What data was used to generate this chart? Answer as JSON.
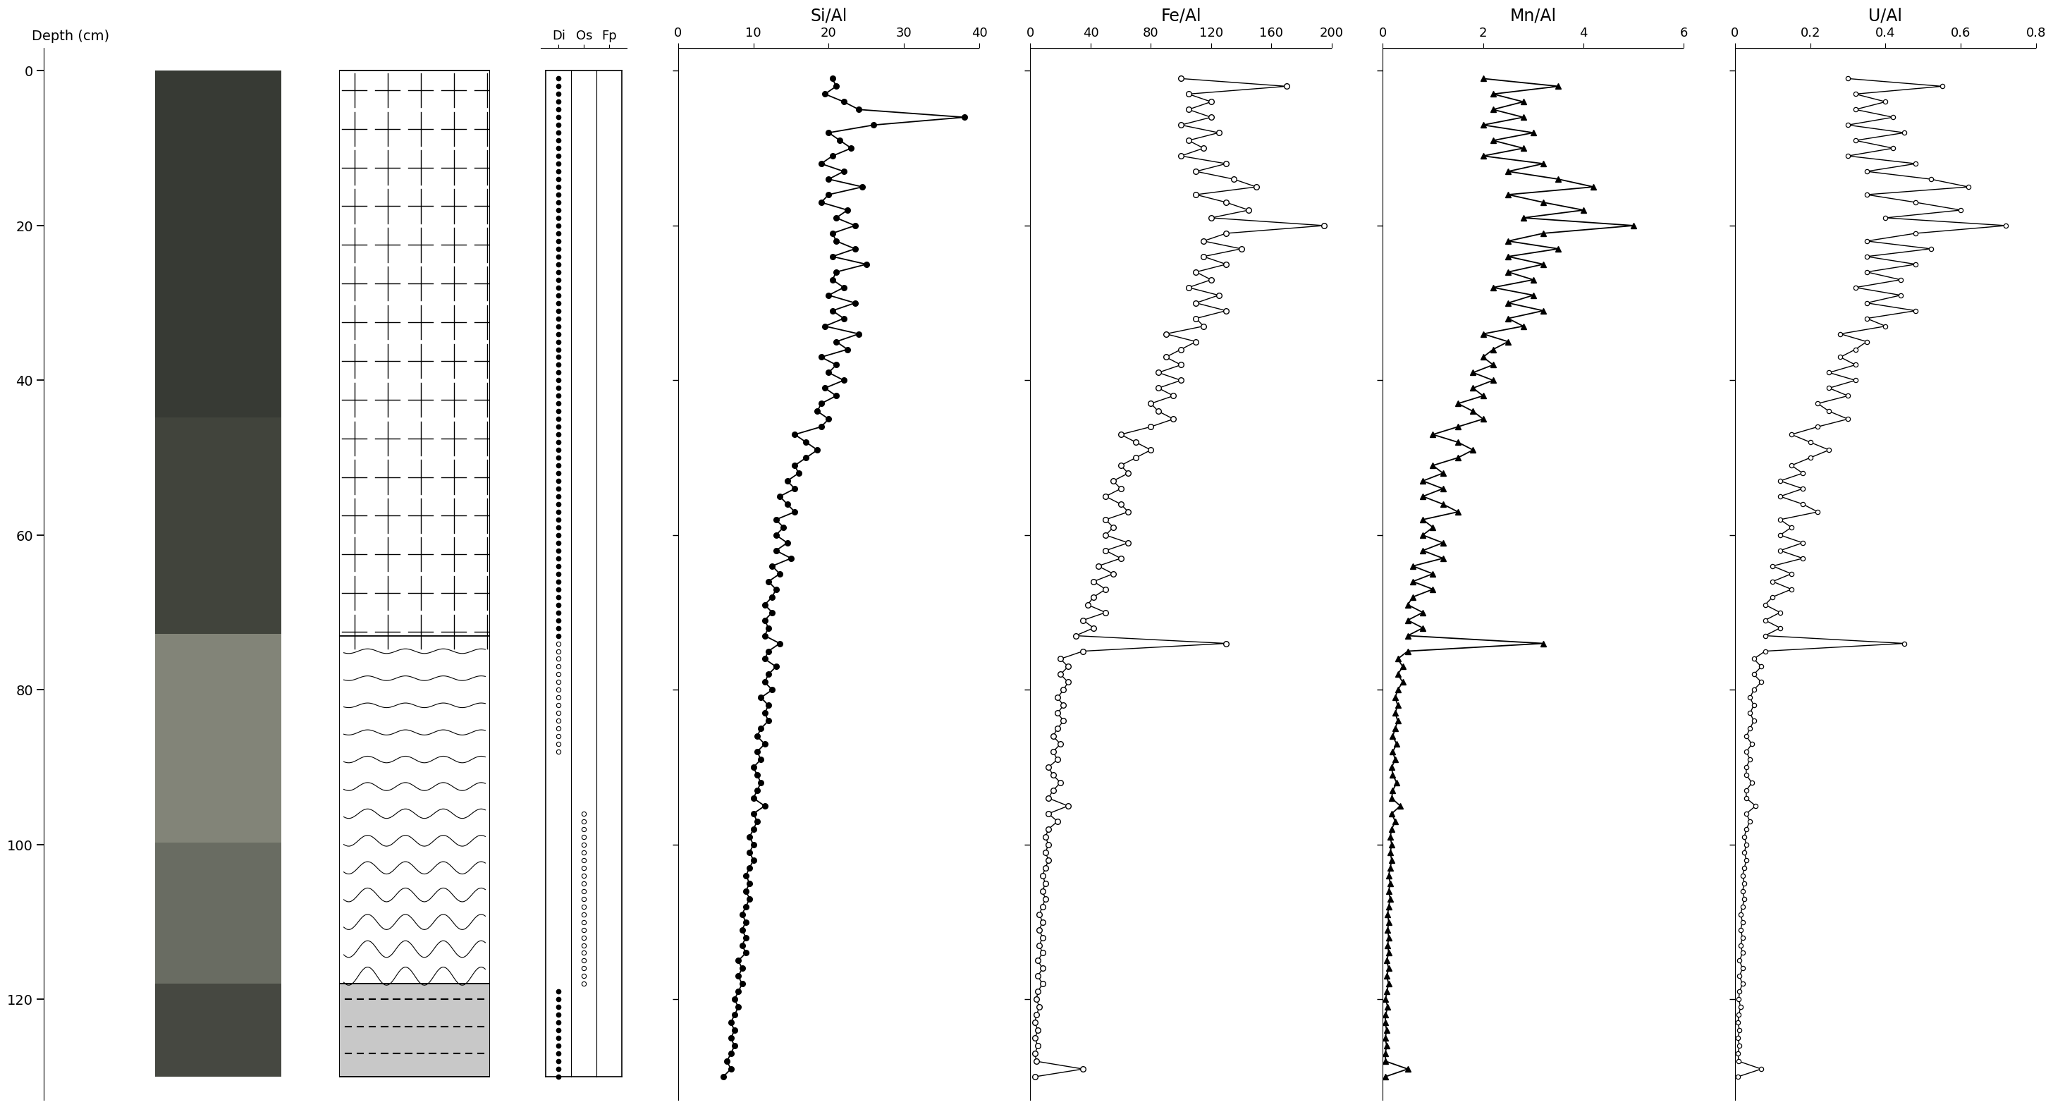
{
  "depth_min": 0,
  "depth_max": 130,
  "depth_ticks": [
    0,
    20,
    40,
    60,
    80,
    100,
    120
  ],
  "si_al_data": [
    [
      1,
      20.5
    ],
    [
      2,
      21.0
    ],
    [
      3,
      19.5
    ],
    [
      4,
      22.0
    ],
    [
      5,
      24.0
    ],
    [
      6,
      38.0
    ],
    [
      7,
      26.0
    ],
    [
      8,
      20.0
    ],
    [
      9,
      21.5
    ],
    [
      10,
      23.0
    ],
    [
      11,
      20.5
    ],
    [
      12,
      19.0
    ],
    [
      13,
      22.0
    ],
    [
      14,
      20.0
    ],
    [
      15,
      24.5
    ],
    [
      16,
      20.0
    ],
    [
      17,
      19.0
    ],
    [
      18,
      22.5
    ],
    [
      19,
      21.0
    ],
    [
      20,
      23.5
    ],
    [
      21,
      20.5
    ],
    [
      22,
      21.0
    ],
    [
      23,
      23.5
    ],
    [
      24,
      20.5
    ],
    [
      25,
      25.0
    ],
    [
      26,
      21.0
    ],
    [
      27,
      20.5
    ],
    [
      28,
      22.0
    ],
    [
      29,
      20.0
    ],
    [
      30,
      23.5
    ],
    [
      31,
      20.5
    ],
    [
      32,
      22.0
    ],
    [
      33,
      19.5
    ],
    [
      34,
      24.0
    ],
    [
      35,
      21.0
    ],
    [
      36,
      22.5
    ],
    [
      37,
      19.0
    ],
    [
      38,
      21.0
    ],
    [
      39,
      20.0
    ],
    [
      40,
      22.0
    ],
    [
      41,
      19.5
    ],
    [
      42,
      21.0
    ],
    [
      43,
      19.0
    ],
    [
      44,
      18.5
    ],
    [
      45,
      20.0
    ],
    [
      46,
      19.0
    ],
    [
      47,
      15.5
    ],
    [
      48,
      17.0
    ],
    [
      49,
      18.5
    ],
    [
      50,
      17.0
    ],
    [
      51,
      15.5
    ],
    [
      52,
      16.0
    ],
    [
      53,
      14.5
    ],
    [
      54,
      15.5
    ],
    [
      55,
      13.5
    ],
    [
      56,
      14.5
    ],
    [
      57,
      15.5
    ],
    [
      58,
      13.0
    ],
    [
      59,
      14.0
    ],
    [
      60,
      13.0
    ],
    [
      61,
      14.5
    ],
    [
      62,
      13.0
    ],
    [
      63,
      15.0
    ],
    [
      64,
      12.5
    ],
    [
      65,
      13.5
    ],
    [
      66,
      12.0
    ],
    [
      67,
      13.0
    ],
    [
      68,
      12.5
    ],
    [
      69,
      11.5
    ],
    [
      70,
      12.5
    ],
    [
      71,
      11.5
    ],
    [
      72,
      12.0
    ],
    [
      73,
      11.5
    ],
    [
      74,
      13.5
    ],
    [
      75,
      12.0
    ],
    [
      76,
      11.5
    ],
    [
      77,
      13.0
    ],
    [
      78,
      12.0
    ],
    [
      79,
      11.5
    ],
    [
      80,
      12.5
    ],
    [
      81,
      11.0
    ],
    [
      82,
      12.0
    ],
    [
      83,
      11.5
    ],
    [
      84,
      12.0
    ],
    [
      85,
      11.0
    ],
    [
      86,
      10.5
    ],
    [
      87,
      11.5
    ],
    [
      88,
      10.5
    ],
    [
      89,
      11.0
    ],
    [
      90,
      10.0
    ],
    [
      91,
      10.5
    ],
    [
      92,
      11.0
    ],
    [
      93,
      10.5
    ],
    [
      94,
      10.0
    ],
    [
      95,
      11.5
    ],
    [
      96,
      10.0
    ],
    [
      97,
      10.5
    ],
    [
      98,
      10.0
    ],
    [
      99,
      9.5
    ],
    [
      100,
      10.0
    ],
    [
      101,
      9.5
    ],
    [
      102,
      10.0
    ],
    [
      103,
      9.5
    ],
    [
      104,
      9.0
    ],
    [
      105,
      9.5
    ],
    [
      106,
      9.0
    ],
    [
      107,
      9.5
    ],
    [
      108,
      9.0
    ],
    [
      109,
      8.5
    ],
    [
      110,
      9.0
    ],
    [
      111,
      8.5
    ],
    [
      112,
      9.0
    ],
    [
      113,
      8.5
    ],
    [
      114,
      9.0
    ],
    [
      115,
      8.0
    ],
    [
      116,
      8.5
    ],
    [
      117,
      8.0
    ],
    [
      118,
      8.5
    ],
    [
      119,
      8.0
    ],
    [
      120,
      7.5
    ],
    [
      121,
      8.0
    ],
    [
      122,
      7.5
    ],
    [
      123,
      7.0
    ],
    [
      124,
      7.5
    ],
    [
      125,
      7.0
    ],
    [
      126,
      7.5
    ],
    [
      127,
      7.0
    ],
    [
      128,
      6.5
    ],
    [
      129,
      7.0
    ],
    [
      130,
      6.0
    ]
  ],
  "fe_al_data": [
    [
      1,
      100
    ],
    [
      2,
      170
    ],
    [
      3,
      105
    ],
    [
      4,
      120
    ],
    [
      5,
      105
    ],
    [
      6,
      120
    ],
    [
      7,
      100
    ],
    [
      8,
      125
    ],
    [
      9,
      105
    ],
    [
      10,
      115
    ],
    [
      11,
      100
    ],
    [
      12,
      130
    ],
    [
      13,
      110
    ],
    [
      14,
      135
    ],
    [
      15,
      150
    ],
    [
      16,
      110
    ],
    [
      17,
      130
    ],
    [
      18,
      145
    ],
    [
      19,
      120
    ],
    [
      20,
      195
    ],
    [
      21,
      130
    ],
    [
      22,
      115
    ],
    [
      23,
      140
    ],
    [
      24,
      115
    ],
    [
      25,
      130
    ],
    [
      26,
      110
    ],
    [
      27,
      120
    ],
    [
      28,
      105
    ],
    [
      29,
      125
    ],
    [
      30,
      110
    ],
    [
      31,
      130
    ],
    [
      32,
      110
    ],
    [
      33,
      115
    ],
    [
      34,
      90
    ],
    [
      35,
      110
    ],
    [
      36,
      100
    ],
    [
      37,
      90
    ],
    [
      38,
      100
    ],
    [
      39,
      85
    ],
    [
      40,
      100
    ],
    [
      41,
      85
    ],
    [
      42,
      95
    ],
    [
      43,
      80
    ],
    [
      44,
      85
    ],
    [
      45,
      95
    ],
    [
      46,
      80
    ],
    [
      47,
      60
    ],
    [
      48,
      70
    ],
    [
      49,
      80
    ],
    [
      50,
      70
    ],
    [
      51,
      60
    ],
    [
      52,
      65
    ],
    [
      53,
      55
    ],
    [
      54,
      60
    ],
    [
      55,
      50
    ],
    [
      56,
      60
    ],
    [
      57,
      65
    ],
    [
      58,
      50
    ],
    [
      59,
      55
    ],
    [
      60,
      50
    ],
    [
      61,
      65
    ],
    [
      62,
      50
    ],
    [
      63,
      60
    ],
    [
      64,
      45
    ],
    [
      65,
      55
    ],
    [
      66,
      42
    ],
    [
      67,
      50
    ],
    [
      68,
      42
    ],
    [
      69,
      38
    ],
    [
      70,
      50
    ],
    [
      71,
      35
    ],
    [
      72,
      42
    ],
    [
      73,
      30
    ],
    [
      74,
      130
    ],
    [
      75,
      35
    ],
    [
      76,
      20
    ],
    [
      77,
      25
    ],
    [
      78,
      20
    ],
    [
      79,
      25
    ],
    [
      80,
      22
    ],
    [
      81,
      18
    ],
    [
      82,
      22
    ],
    [
      83,
      18
    ],
    [
      84,
      22
    ],
    [
      85,
      18
    ],
    [
      86,
      15
    ],
    [
      87,
      20
    ],
    [
      88,
      15
    ],
    [
      89,
      18
    ],
    [
      90,
      12
    ],
    [
      91,
      15
    ],
    [
      92,
      20
    ],
    [
      93,
      15
    ],
    [
      94,
      12
    ],
    [
      95,
      25
    ],
    [
      96,
      12
    ],
    [
      97,
      18
    ],
    [
      98,
      12
    ],
    [
      99,
      10
    ],
    [
      100,
      12
    ],
    [
      101,
      10
    ],
    [
      102,
      12
    ],
    [
      103,
      10
    ],
    [
      104,
      8
    ],
    [
      105,
      10
    ],
    [
      106,
      8
    ],
    [
      107,
      10
    ],
    [
      108,
      8
    ],
    [
      109,
      6
    ],
    [
      110,
      8
    ],
    [
      111,
      6
    ],
    [
      112,
      8
    ],
    [
      113,
      6
    ],
    [
      114,
      8
    ],
    [
      115,
      5
    ],
    [
      116,
      8
    ],
    [
      117,
      5
    ],
    [
      118,
      8
    ],
    [
      119,
      5
    ],
    [
      120,
      4
    ],
    [
      121,
      6
    ],
    [
      122,
      4
    ],
    [
      123,
      3
    ],
    [
      124,
      5
    ],
    [
      125,
      3
    ],
    [
      126,
      5
    ],
    [
      127,
      3
    ],
    [
      128,
      4
    ],
    [
      129,
      35
    ],
    [
      130,
      3
    ]
  ],
  "mn_al_data": [
    [
      1,
      2.0
    ],
    [
      2,
      3.5
    ],
    [
      3,
      2.2
    ],
    [
      4,
      2.8
    ],
    [
      5,
      2.2
    ],
    [
      6,
      2.8
    ],
    [
      7,
      2.0
    ],
    [
      8,
      3.0
    ],
    [
      9,
      2.2
    ],
    [
      10,
      2.8
    ],
    [
      11,
      2.0
    ],
    [
      12,
      3.2
    ],
    [
      13,
      2.5
    ],
    [
      14,
      3.5
    ],
    [
      15,
      4.2
    ],
    [
      16,
      2.5
    ],
    [
      17,
      3.2
    ],
    [
      18,
      4.0
    ],
    [
      19,
      2.8
    ],
    [
      20,
      5.0
    ],
    [
      21,
      3.2
    ],
    [
      22,
      2.5
    ],
    [
      23,
      3.5
    ],
    [
      24,
      2.5
    ],
    [
      25,
      3.2
    ],
    [
      26,
      2.5
    ],
    [
      27,
      3.0
    ],
    [
      28,
      2.2
    ],
    [
      29,
      3.0
    ],
    [
      30,
      2.5
    ],
    [
      31,
      3.2
    ],
    [
      32,
      2.5
    ],
    [
      33,
      2.8
    ],
    [
      34,
      2.0
    ],
    [
      35,
      2.5
    ],
    [
      36,
      2.2
    ],
    [
      37,
      2.0
    ],
    [
      38,
      2.2
    ],
    [
      39,
      1.8
    ],
    [
      40,
      2.2
    ],
    [
      41,
      1.8
    ],
    [
      42,
      2.0
    ],
    [
      43,
      1.5
    ],
    [
      44,
      1.8
    ],
    [
      45,
      2.0
    ],
    [
      46,
      1.5
    ],
    [
      47,
      1.0
    ],
    [
      48,
      1.5
    ],
    [
      49,
      1.8
    ],
    [
      50,
      1.5
    ],
    [
      51,
      1.0
    ],
    [
      52,
      1.2
    ],
    [
      53,
      0.8
    ],
    [
      54,
      1.2
    ],
    [
      55,
      0.8
    ],
    [
      56,
      1.2
    ],
    [
      57,
      1.5
    ],
    [
      58,
      0.8
    ],
    [
      59,
      1.0
    ],
    [
      60,
      0.8
    ],
    [
      61,
      1.2
    ],
    [
      62,
      0.8
    ],
    [
      63,
      1.2
    ],
    [
      64,
      0.6
    ],
    [
      65,
      1.0
    ],
    [
      66,
      0.6
    ],
    [
      67,
      1.0
    ],
    [
      68,
      0.6
    ],
    [
      69,
      0.5
    ],
    [
      70,
      0.8
    ],
    [
      71,
      0.5
    ],
    [
      72,
      0.8
    ],
    [
      73,
      0.5
    ],
    [
      74,
      3.2
    ],
    [
      75,
      0.5
    ],
    [
      76,
      0.3
    ],
    [
      77,
      0.4
    ],
    [
      78,
      0.3
    ],
    [
      79,
      0.4
    ],
    [
      80,
      0.3
    ],
    [
      81,
      0.25
    ],
    [
      82,
      0.3
    ],
    [
      83,
      0.25
    ],
    [
      84,
      0.3
    ],
    [
      85,
      0.25
    ],
    [
      86,
      0.2
    ],
    [
      87,
      0.28
    ],
    [
      88,
      0.2
    ],
    [
      89,
      0.25
    ],
    [
      90,
      0.18
    ],
    [
      91,
      0.2
    ],
    [
      92,
      0.28
    ],
    [
      93,
      0.2
    ],
    [
      94,
      0.18
    ],
    [
      95,
      0.35
    ],
    [
      96,
      0.18
    ],
    [
      97,
      0.25
    ],
    [
      98,
      0.18
    ],
    [
      99,
      0.15
    ],
    [
      100,
      0.18
    ],
    [
      101,
      0.15
    ],
    [
      102,
      0.18
    ],
    [
      103,
      0.15
    ],
    [
      104,
      0.12
    ],
    [
      105,
      0.15
    ],
    [
      106,
      0.12
    ],
    [
      107,
      0.15
    ],
    [
      108,
      0.12
    ],
    [
      109,
      0.1
    ],
    [
      110,
      0.12
    ],
    [
      111,
      0.1
    ],
    [
      112,
      0.12
    ],
    [
      113,
      0.1
    ],
    [
      114,
      0.12
    ],
    [
      115,
      0.08
    ],
    [
      116,
      0.12
    ],
    [
      117,
      0.08
    ],
    [
      118,
      0.12
    ],
    [
      119,
      0.08
    ],
    [
      120,
      0.06
    ],
    [
      121,
      0.1
    ],
    [
      122,
      0.06
    ],
    [
      123,
      0.05
    ],
    [
      124,
      0.08
    ],
    [
      125,
      0.05
    ],
    [
      126,
      0.08
    ],
    [
      127,
      0.05
    ],
    [
      128,
      0.06
    ],
    [
      129,
      0.5
    ],
    [
      130,
      0.05
    ]
  ],
  "u_al_data": [
    [
      1,
      0.3
    ],
    [
      2,
      0.55
    ],
    [
      3,
      0.32
    ],
    [
      4,
      0.4
    ],
    [
      5,
      0.32
    ],
    [
      6,
      0.42
    ],
    [
      7,
      0.3
    ],
    [
      8,
      0.45
    ],
    [
      9,
      0.32
    ],
    [
      10,
      0.42
    ],
    [
      11,
      0.3
    ],
    [
      12,
      0.48
    ],
    [
      13,
      0.35
    ],
    [
      14,
      0.52
    ],
    [
      15,
      0.62
    ],
    [
      16,
      0.35
    ],
    [
      17,
      0.48
    ],
    [
      18,
      0.6
    ],
    [
      19,
      0.4
    ],
    [
      20,
      0.72
    ],
    [
      21,
      0.48
    ],
    [
      22,
      0.35
    ],
    [
      23,
      0.52
    ],
    [
      24,
      0.35
    ],
    [
      25,
      0.48
    ],
    [
      26,
      0.35
    ],
    [
      27,
      0.44
    ],
    [
      28,
      0.32
    ],
    [
      29,
      0.44
    ],
    [
      30,
      0.35
    ],
    [
      31,
      0.48
    ],
    [
      32,
      0.35
    ],
    [
      33,
      0.4
    ],
    [
      34,
      0.28
    ],
    [
      35,
      0.35
    ],
    [
      36,
      0.32
    ],
    [
      37,
      0.28
    ],
    [
      38,
      0.32
    ],
    [
      39,
      0.25
    ],
    [
      40,
      0.32
    ],
    [
      41,
      0.25
    ],
    [
      42,
      0.3
    ],
    [
      43,
      0.22
    ],
    [
      44,
      0.25
    ],
    [
      45,
      0.3
    ],
    [
      46,
      0.22
    ],
    [
      47,
      0.15
    ],
    [
      48,
      0.2
    ],
    [
      49,
      0.25
    ],
    [
      50,
      0.2
    ],
    [
      51,
      0.15
    ],
    [
      52,
      0.18
    ],
    [
      53,
      0.12
    ],
    [
      54,
      0.18
    ],
    [
      55,
      0.12
    ],
    [
      56,
      0.18
    ],
    [
      57,
      0.22
    ],
    [
      58,
      0.12
    ],
    [
      59,
      0.15
    ],
    [
      60,
      0.12
    ],
    [
      61,
      0.18
    ],
    [
      62,
      0.12
    ],
    [
      63,
      0.18
    ],
    [
      64,
      0.1
    ],
    [
      65,
      0.15
    ],
    [
      66,
      0.1
    ],
    [
      67,
      0.15
    ],
    [
      68,
      0.1
    ],
    [
      69,
      0.08
    ],
    [
      70,
      0.12
    ],
    [
      71,
      0.08
    ],
    [
      72,
      0.12
    ],
    [
      73,
      0.08
    ],
    [
      74,
      0.45
    ],
    [
      75,
      0.08
    ],
    [
      76,
      0.05
    ],
    [
      77,
      0.07
    ],
    [
      78,
      0.05
    ],
    [
      79,
      0.07
    ],
    [
      80,
      0.05
    ],
    [
      81,
      0.04
    ],
    [
      82,
      0.05
    ],
    [
      83,
      0.04
    ],
    [
      84,
      0.05
    ],
    [
      85,
      0.04
    ],
    [
      86,
      0.03
    ],
    [
      87,
      0.045
    ],
    [
      88,
      0.03
    ],
    [
      89,
      0.04
    ],
    [
      90,
      0.03
    ],
    [
      91,
      0.03
    ],
    [
      92,
      0.045
    ],
    [
      93,
      0.03
    ],
    [
      94,
      0.03
    ],
    [
      95,
      0.055
    ],
    [
      96,
      0.03
    ],
    [
      97,
      0.04
    ],
    [
      98,
      0.03
    ],
    [
      99,
      0.025
    ],
    [
      100,
      0.03
    ],
    [
      101,
      0.025
    ],
    [
      102,
      0.03
    ],
    [
      103,
      0.025
    ],
    [
      104,
      0.02
    ],
    [
      105,
      0.025
    ],
    [
      106,
      0.02
    ],
    [
      107,
      0.025
    ],
    [
      108,
      0.02
    ],
    [
      109,
      0.015
    ],
    [
      110,
      0.02
    ],
    [
      111,
      0.015
    ],
    [
      112,
      0.02
    ],
    [
      113,
      0.015
    ],
    [
      114,
      0.02
    ],
    [
      115,
      0.012
    ],
    [
      116,
      0.02
    ],
    [
      117,
      0.012
    ],
    [
      118,
      0.02
    ],
    [
      119,
      0.012
    ],
    [
      120,
      0.01
    ],
    [
      121,
      0.015
    ],
    [
      122,
      0.01
    ],
    [
      123,
      0.008
    ],
    [
      124,
      0.012
    ],
    [
      125,
      0.008
    ],
    [
      126,
      0.012
    ],
    [
      127,
      0.008
    ],
    [
      128,
      0.01
    ],
    [
      129,
      0.07
    ],
    [
      130,
      0.008
    ]
  ],
  "litho_boundary1": 73,
  "litho_boundary2": 118,
  "di_filled": [
    1,
    2,
    3,
    4,
    5,
    6,
    7,
    8,
    9,
    10,
    11,
    12,
    13,
    14,
    15,
    16,
    17,
    18,
    19,
    20,
    21,
    22,
    23,
    24,
    25,
    26,
    27,
    28,
    29,
    30,
    31,
    32,
    33,
    34,
    35,
    36,
    37,
    38,
    39,
    40,
    41,
    42,
    43,
    44,
    45,
    46,
    47,
    48,
    49,
    50,
    51,
    52,
    53,
    54,
    55,
    56,
    57,
    58,
    59,
    60,
    61,
    62,
    63,
    64,
    65,
    66,
    67,
    68,
    69,
    70,
    71,
    72,
    73,
    119,
    120,
    121,
    122,
    123,
    124,
    125,
    126,
    127,
    128,
    129,
    130
  ],
  "di_open": [
    74,
    75,
    76,
    77,
    78,
    79,
    80,
    81,
    82,
    83,
    84,
    85,
    86,
    87,
    88
  ],
  "os_open": [
    96,
    97,
    98,
    99,
    100,
    101,
    102,
    103,
    104,
    105,
    106,
    107,
    108,
    109,
    110,
    111,
    112,
    113,
    114,
    115,
    116,
    117,
    118
  ],
  "photo_colors": [
    [
      0,
      45,
      [
        55,
        58,
        52
      ]
    ],
    [
      45,
      73,
      [
        65,
        68,
        60
      ]
    ],
    [
      73,
      100,
      [
        130,
        132,
        120
      ]
    ],
    [
      100,
      118,
      [
        105,
        108,
        98
      ]
    ],
    [
      118,
      130,
      [
        70,
        72,
        65
      ]
    ]
  ]
}
